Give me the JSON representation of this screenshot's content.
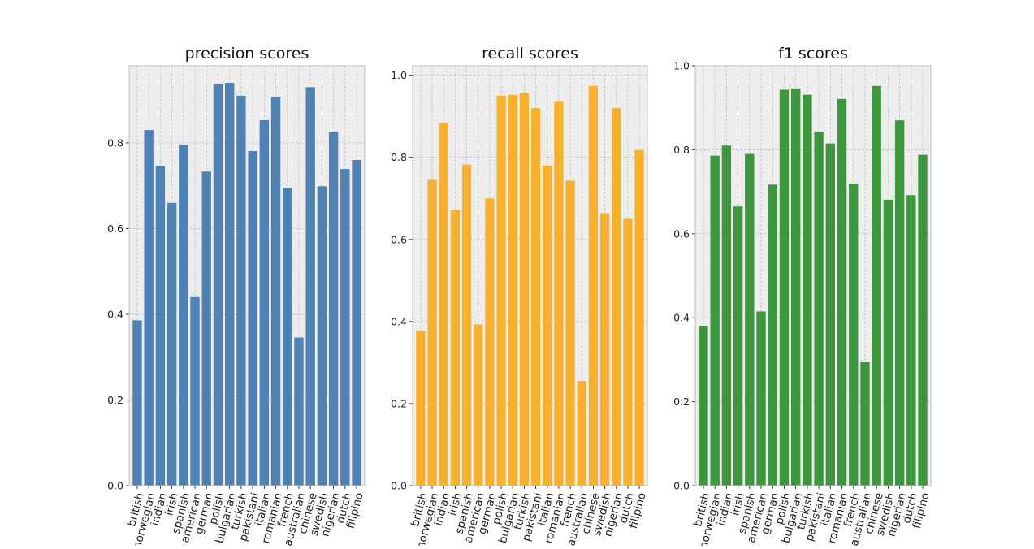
{
  "chart_data": [
    {
      "type": "bar",
      "title": "precision scores",
      "color": "#4f81b3",
      "ylim": [
        0,
        0.98
      ],
      "yticks": [
        "0.0",
        "0.2",
        "0.4",
        "0.6",
        "0.8"
      ],
      "ytick_values": [
        0.0,
        0.2,
        0.4,
        0.6,
        0.8
      ],
      "grid": true,
      "categories": [
        "british",
        "norwegian",
        "indian",
        "irish",
        "spanish",
        "american",
        "german",
        "polish",
        "bulgarian",
        "turkish",
        "pakistani",
        "italian",
        "romanian",
        "french",
        "australian",
        "chinese",
        "swedish",
        "nigerian",
        "dutch",
        "filipino"
      ],
      "values": [
        0.386,
        0.83,
        0.746,
        0.66,
        0.796,
        0.44,
        0.733,
        0.937,
        0.94,
        0.91,
        0.781,
        0.853,
        0.907,
        0.695,
        0.346,
        0.93,
        0.699,
        0.825,
        0.739,
        0.76
      ]
    },
    {
      "type": "bar",
      "title": "recall scores",
      "color": "#f8b12e",
      "ylim": [
        0,
        1.023
      ],
      "yticks": [
        "0.0",
        "0.2",
        "0.4",
        "0.6",
        "0.8",
        "1.0"
      ],
      "ytick_values": [
        0.0,
        0.2,
        0.4,
        0.6,
        0.8,
        1.0
      ],
      "grid": true,
      "categories": [
        "british",
        "norwegian",
        "indian",
        "irish",
        "spanish",
        "american",
        "german",
        "polish",
        "bulgarian",
        "turkish",
        "pakistani",
        "italian",
        "romanian",
        "french",
        "australian",
        "chinese",
        "swedish",
        "nigerian",
        "dutch",
        "filipino"
      ],
      "values": [
        0.378,
        0.745,
        0.884,
        0.672,
        0.782,
        0.393,
        0.7,
        0.95,
        0.952,
        0.957,
        0.92,
        0.78,
        0.937,
        0.743,
        0.255,
        0.974,
        0.664,
        0.92,
        0.65,
        0.818
      ]
    },
    {
      "type": "bar",
      "title": "f1 scores",
      "color": "#3e963e",
      "ylim": [
        0,
        1.0
      ],
      "yticks": [
        "0.0",
        "0.2",
        "0.4",
        "0.6",
        "0.8",
        "1.0"
      ],
      "ytick_values": [
        0.0,
        0.2,
        0.4,
        0.6,
        0.8,
        1.0
      ],
      "grid": true,
      "categories": [
        "british",
        "norwegian",
        "indian",
        "irish",
        "spanish",
        "american",
        "german",
        "polish",
        "bulgarian",
        "turkish",
        "pakistani",
        "italian",
        "romanian",
        "french",
        "australian",
        "chinese",
        "swedish",
        "nigerian",
        "dutch",
        "filipino"
      ],
      "values": [
        0.381,
        0.786,
        0.81,
        0.665,
        0.79,
        0.415,
        0.717,
        0.943,
        0.946,
        0.931,
        0.843,
        0.815,
        0.921,
        0.719,
        0.294,
        0.952,
        0.681,
        0.87,
        0.692,
        0.788
      ]
    }
  ]
}
